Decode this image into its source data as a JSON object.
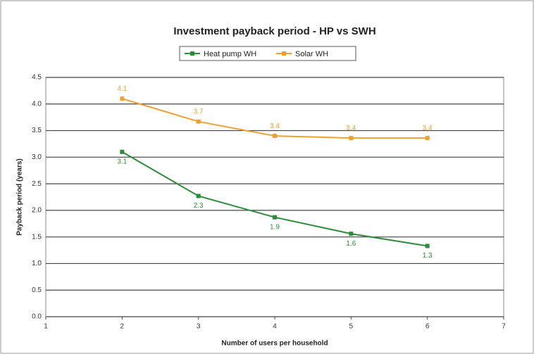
{
  "chart_data": {
    "type": "line",
    "title": "Investment payback period - HP vs SWH",
    "x_label": "Number of users per household",
    "y_label": "Payback period (years)",
    "x": [
      2,
      3,
      4,
      5,
      6
    ],
    "series": [
      {
        "name": "Heat pump WH",
        "color": "#2e8b3a",
        "values": [
          3.1,
          2.27,
          1.87,
          1.56,
          1.33
        ],
        "value_labels": [
          "3.1",
          "2.3",
          "1.9",
          "1.6",
          "1.3"
        ]
      },
      {
        "name": "Solar WH",
        "color": "#f0a030",
        "values": [
          4.1,
          3.67,
          3.4,
          3.36,
          3.36
        ],
        "value_labels": [
          "4.1",
          "3.7",
          "3.4",
          "3.4",
          "3.4"
        ]
      }
    ],
    "xlim": [
      1,
      7
    ],
    "xticks": [
      1,
      2,
      3,
      4,
      5,
      6,
      7
    ],
    "ylim": [
      0,
      4.5
    ],
    "yticks": [
      {
        "value": 0,
        "label": "0.0"
      },
      {
        "value": 0.5,
        "label": "0.5"
      },
      {
        "value": 1,
        "label": "1.0"
      },
      {
        "value": 1.5,
        "label": "1.5"
      },
      {
        "value": 2,
        "label": "2.0"
      },
      {
        "value": 2.5,
        "label": "2.5"
      },
      {
        "value": 3,
        "label": "3.0"
      },
      {
        "value": 3.5,
        "label": "3.5"
      },
      {
        "value": 4,
        "label": "4.0"
      },
      {
        "value": 4.5,
        "label": "4.5"
      }
    ],
    "grid": true
  }
}
